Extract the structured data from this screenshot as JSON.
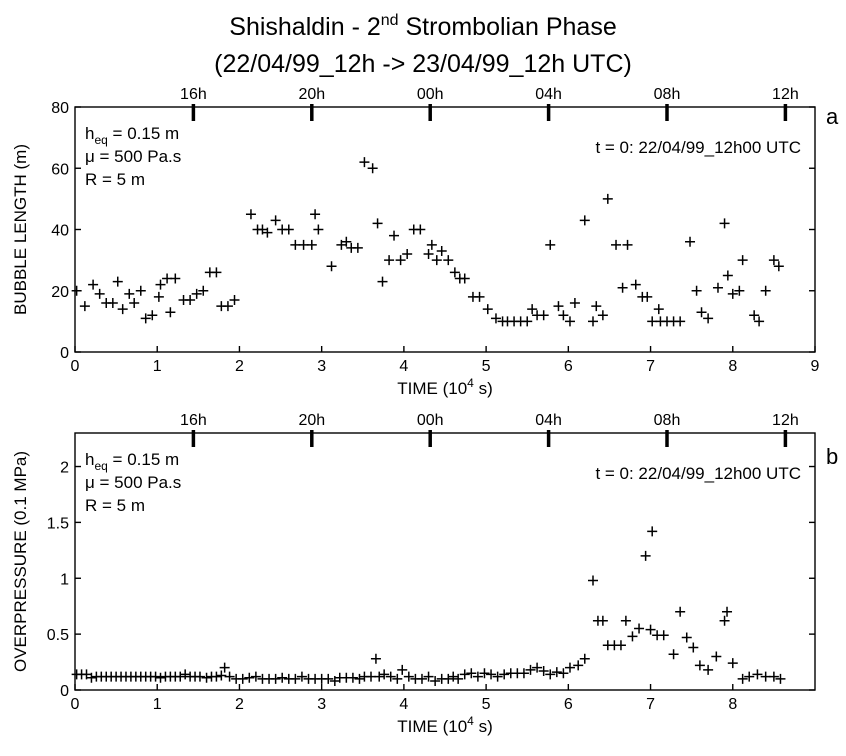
{
  "title_line1_prefix": "Shishaldin - 2",
  "title_line1_sup": "nd",
  "title_line1_suffix": " Strombolian Phase",
  "title_line2": "(22/04/99_12h -> 23/04/99_12h UTC)",
  "chart_data": [
    {
      "type": "scatter",
      "panel_label": "a",
      "marker": "+",
      "xlabel_prefix": "TIME (10",
      "xlabel_sup": "4",
      "xlabel_suffix": " s)",
      "ylabel": "BUBBLE LENGTH (m)",
      "xlim": [
        0,
        9
      ],
      "ylim": [
        0,
        80
      ],
      "xticks": [
        0,
        1,
        2,
        3,
        4,
        5,
        6,
        7,
        8,
        9
      ],
      "yticks": [
        0,
        20,
        40,
        60,
        80
      ],
      "ytick_labels": [
        "0",
        "20",
        "40",
        "60",
        "80"
      ],
      "top_axis_ticks": [
        {
          "label": "16h",
          "x": 1.44
        },
        {
          "label": "20h",
          "x": 2.88
        },
        {
          "label": "00h",
          "x": 4.32
        },
        {
          "label": "04h",
          "x": 5.76
        },
        {
          "label": "08h",
          "x": 7.2
        },
        {
          "label": "12h",
          "x": 8.64
        }
      ],
      "annotations": {
        "heq_main": "h",
        "heq_sub": "eq",
        "heq_rest": " = 0.15 m",
        "mu": "μ = 500 Pa.s",
        "R": "R = 5 m",
        "t0": "t = 0: 22/04/99_12h00 UTC"
      },
      "points": [
        [
          0.02,
          20
        ],
        [
          0.12,
          15
        ],
        [
          0.22,
          22
        ],
        [
          0.3,
          19
        ],
        [
          0.38,
          16
        ],
        [
          0.46,
          16
        ],
        [
          0.52,
          23
        ],
        [
          0.58,
          14
        ],
        [
          0.66,
          19
        ],
        [
          0.72,
          16
        ],
        [
          0.8,
          20
        ],
        [
          0.86,
          11
        ],
        [
          0.94,
          12
        ],
        [
          1.02,
          18
        ],
        [
          1.04,
          22
        ],
        [
          1.12,
          24
        ],
        [
          1.16,
          13
        ],
        [
          1.22,
          24
        ],
        [
          1.32,
          17
        ],
        [
          1.4,
          17
        ],
        [
          1.48,
          19
        ],
        [
          1.56,
          20
        ],
        [
          1.64,
          26
        ],
        [
          1.72,
          26
        ],
        [
          1.78,
          15
        ],
        [
          1.86,
          15
        ],
        [
          1.94,
          17
        ],
        [
          2.14,
          45
        ],
        [
          2.22,
          40
        ],
        [
          2.28,
          40
        ],
        [
          2.34,
          39
        ],
        [
          2.44,
          43
        ],
        [
          2.52,
          40
        ],
        [
          2.6,
          40
        ],
        [
          2.68,
          35
        ],
        [
          2.78,
          35
        ],
        [
          2.88,
          35
        ],
        [
          2.92,
          45
        ],
        [
          2.96,
          40
        ],
        [
          3.12,
          28
        ],
        [
          3.24,
          35
        ],
        [
          3.3,
          36
        ],
        [
          3.36,
          34
        ],
        [
          3.44,
          34
        ],
        [
          3.52,
          62
        ],
        [
          3.62,
          60
        ],
        [
          3.68,
          42
        ],
        [
          3.74,
          23
        ],
        [
          3.82,
          30
        ],
        [
          3.88,
          38
        ],
        [
          3.96,
          30
        ],
        [
          4.04,
          32
        ],
        [
          4.12,
          40
        ],
        [
          4.2,
          40
        ],
        [
          4.3,
          32
        ],
        [
          4.34,
          35
        ],
        [
          4.4,
          30
        ],
        [
          4.46,
          33
        ],
        [
          4.54,
          30
        ],
        [
          4.62,
          26
        ],
        [
          4.68,
          24
        ],
        [
          4.74,
          24
        ],
        [
          4.84,
          18
        ],
        [
          4.92,
          18
        ],
        [
          5.02,
          14
        ],
        [
          5.12,
          11
        ],
        [
          5.2,
          10
        ],
        [
          5.26,
          10
        ],
        [
          5.34,
          10
        ],
        [
          5.42,
          10
        ],
        [
          5.5,
          10
        ],
        [
          5.56,
          14
        ],
        [
          5.62,
          12
        ],
        [
          5.7,
          12
        ],
        [
          5.78,
          35
        ],
        [
          5.88,
          15
        ],
        [
          5.94,
          12
        ],
        [
          6.02,
          10
        ],
        [
          6.08,
          16
        ],
        [
          6.2,
          43
        ],
        [
          6.3,
          10
        ],
        [
          6.34,
          15
        ],
        [
          6.42,
          12
        ],
        [
          6.48,
          50
        ],
        [
          6.58,
          35
        ],
        [
          6.66,
          21
        ],
        [
          6.72,
          35
        ],
        [
          6.82,
          22
        ],
        [
          6.9,
          18
        ],
        [
          6.96,
          18
        ],
        [
          7.02,
          10
        ],
        [
          7.1,
          14
        ],
        [
          7.12,
          10
        ],
        [
          7.2,
          10
        ],
        [
          7.28,
          10
        ],
        [
          7.36,
          10
        ],
        [
          7.48,
          36
        ],
        [
          7.56,
          20
        ],
        [
          7.62,
          13
        ],
        [
          7.7,
          11
        ],
        [
          7.82,
          21
        ],
        [
          7.9,
          42
        ],
        [
          7.94,
          25
        ],
        [
          8.0,
          19
        ],
        [
          8.08,
          20
        ],
        [
          8.12,
          30
        ],
        [
          8.26,
          12
        ],
        [
          8.32,
          10
        ],
        [
          8.4,
          20
        ],
        [
          8.5,
          30
        ],
        [
          8.56,
          28
        ]
      ]
    },
    {
      "type": "scatter",
      "panel_label": "b",
      "marker": "+",
      "xlabel_prefix": "TIME (10",
      "xlabel_sup": "4",
      "xlabel_suffix": " s)",
      "ylabel": "OVERPRESSURE (0.1 MPa)",
      "xlim": [
        0,
        9
      ],
      "ylim": [
        0,
        2.3
      ],
      "xticks": [
        0,
        1,
        2,
        3,
        4,
        5,
        6,
        7,
        8
      ],
      "yticks": [
        0,
        0.5,
        1,
        1.5,
        2
      ],
      "ytick_labels": [
        "0",
        "0.5",
        "1",
        "1.5",
        "2"
      ],
      "top_axis_ticks": [
        {
          "label": "16h",
          "x": 1.44
        },
        {
          "label": "20h",
          "x": 2.88
        },
        {
          "label": "00h",
          "x": 4.32
        },
        {
          "label": "04h",
          "x": 5.76
        },
        {
          "label": "08h",
          "x": 7.2
        },
        {
          "label": "12h",
          "x": 8.64
        }
      ],
      "annotations": {
        "heq_main": "h",
        "heq_sub": "eq",
        "heq_rest": " = 0.15 m",
        "mu": "μ = 500 Pa.s",
        "R": "R = 5 m",
        "t0": "t = 0: 22/04/99_12h00 UTC"
      },
      "points": [
        [
          0.02,
          0.14
        ],
        [
          0.08,
          0.14
        ],
        [
          0.14,
          0.14
        ],
        [
          0.2,
          0.11
        ],
        [
          0.26,
          0.12
        ],
        [
          0.32,
          0.12
        ],
        [
          0.38,
          0.12
        ],
        [
          0.44,
          0.12
        ],
        [
          0.5,
          0.12
        ],
        [
          0.56,
          0.12
        ],
        [
          0.62,
          0.12
        ],
        [
          0.68,
          0.12
        ],
        [
          0.74,
          0.12
        ],
        [
          0.8,
          0.12
        ],
        [
          0.86,
          0.12
        ],
        [
          0.92,
          0.12
        ],
        [
          0.98,
          0.12
        ],
        [
          1.04,
          0.11
        ],
        [
          1.1,
          0.12
        ],
        [
          1.16,
          0.12
        ],
        [
          1.22,
          0.12
        ],
        [
          1.28,
          0.12
        ],
        [
          1.34,
          0.14
        ],
        [
          1.4,
          0.12
        ],
        [
          1.46,
          0.12
        ],
        [
          1.52,
          0.12
        ],
        [
          1.6,
          0.11
        ],
        [
          1.66,
          0.12
        ],
        [
          1.72,
          0.12
        ],
        [
          1.78,
          0.13
        ],
        [
          1.82,
          0.2
        ],
        [
          1.88,
          0.12
        ],
        [
          1.96,
          0.1
        ],
        [
          2.04,
          0.1
        ],
        [
          2.12,
          0.11
        ],
        [
          2.2,
          0.12
        ],
        [
          2.28,
          0.1
        ],
        [
          2.36,
          0.1
        ],
        [
          2.44,
          0.1
        ],
        [
          2.52,
          0.11
        ],
        [
          2.6,
          0.1
        ],
        [
          2.68,
          0.1
        ],
        [
          2.76,
          0.12
        ],
        [
          2.84,
          0.1
        ],
        [
          2.92,
          0.1
        ],
        [
          3.0,
          0.1
        ],
        [
          3.08,
          0.1
        ],
        [
          3.16,
          0.08
        ],
        [
          3.22,
          0.11
        ],
        [
          3.3,
          0.11
        ],
        [
          3.38,
          0.11
        ],
        [
          3.46,
          0.1
        ],
        [
          3.52,
          0.12
        ],
        [
          3.6,
          0.12
        ],
        [
          3.66,
          0.28
        ],
        [
          3.7,
          0.12
        ],
        [
          3.76,
          0.14
        ],
        [
          3.84,
          0.12
        ],
        [
          3.92,
          0.1
        ],
        [
          3.98,
          0.18
        ],
        [
          4.06,
          0.12
        ],
        [
          4.14,
          0.1
        ],
        [
          4.22,
          0.1
        ],
        [
          4.3,
          0.12
        ],
        [
          4.38,
          0.08
        ],
        [
          4.46,
          0.1
        ],
        [
          4.54,
          0.1
        ],
        [
          4.6,
          0.12
        ],
        [
          4.66,
          0.1
        ],
        [
          4.74,
          0.14
        ],
        [
          4.82,
          0.15
        ],
        [
          4.9,
          0.12
        ],
        [
          4.98,
          0.15
        ],
        [
          5.06,
          0.14
        ],
        [
          5.14,
          0.12
        ],
        [
          5.22,
          0.14
        ],
        [
          5.3,
          0.15
        ],
        [
          5.38,
          0.15
        ],
        [
          5.46,
          0.15
        ],
        [
          5.54,
          0.18
        ],
        [
          5.62,
          0.2
        ],
        [
          5.7,
          0.17
        ],
        [
          5.78,
          0.14
        ],
        [
          5.86,
          0.16
        ],
        [
          5.94,
          0.15
        ],
        [
          6.02,
          0.2
        ],
        [
          6.12,
          0.22
        ],
        [
          6.2,
          0.28
        ],
        [
          6.3,
          0.98
        ],
        [
          6.36,
          0.62
        ],
        [
          6.42,
          0.62
        ],
        [
          6.48,
          0.4
        ],
        [
          6.56,
          0.4
        ],
        [
          6.64,
          0.4
        ],
        [
          6.7,
          0.62
        ],
        [
          6.78,
          0.48
        ],
        [
          6.86,
          0.55
        ],
        [
          6.94,
          1.2
        ],
        [
          7.02,
          1.42
        ],
        [
          7.0,
          0.54
        ],
        [
          7.08,
          0.49
        ],
        [
          7.16,
          0.49
        ],
        [
          7.28,
          0.32
        ],
        [
          7.36,
          0.7
        ],
        [
          7.44,
          0.47
        ],
        [
          7.52,
          0.38
        ],
        [
          7.6,
          0.22
        ],
        [
          7.7,
          0.18
        ],
        [
          7.8,
          0.3
        ],
        [
          7.9,
          0.62
        ],
        [
          7.93,
          0.7
        ],
        [
          8.0,
          0.24
        ],
        [
          8.12,
          0.1
        ],
        [
          8.2,
          0.12
        ],
        [
          8.3,
          0.14
        ],
        [
          8.4,
          0.12
        ],
        [
          8.5,
          0.12
        ],
        [
          8.58,
          0.1
        ]
      ]
    }
  ]
}
